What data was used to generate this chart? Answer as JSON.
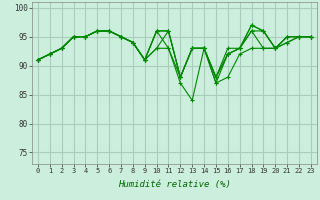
{
  "title": "",
  "xlabel": "Humidité relative (%)",
  "ylabel": "",
  "background_color": "#cceedd",
  "grid_color": "#aaccbb",
  "line_color": "#008800",
  "marker_color": "#008800",
  "xlim": [
    -0.5,
    23.5
  ],
  "ylim": [
    73,
    101
  ],
  "yticks": [
    75,
    80,
    85,
    90,
    95,
    100
  ],
  "xticks": [
    0,
    1,
    2,
    3,
    4,
    5,
    6,
    7,
    8,
    9,
    10,
    11,
    12,
    13,
    14,
    15,
    16,
    17,
    18,
    19,
    20,
    21,
    22,
    23
  ],
  "series": [
    [
      91,
      92,
      93,
      95,
      95,
      96,
      96,
      95,
      94,
      91,
      93,
      93,
      87,
      84,
      93,
      87,
      88,
      92,
      93,
      93,
      93,
      94,
      95,
      95
    ],
    [
      91,
      92,
      93,
      95,
      95,
      96,
      96,
      95,
      94,
      91,
      93,
      96,
      88,
      93,
      93,
      88,
      92,
      93,
      96,
      93,
      93,
      94,
      95,
      95
    ],
    [
      91,
      92,
      93,
      95,
      95,
      96,
      96,
      95,
      94,
      91,
      96,
      93,
      88,
      93,
      93,
      87,
      92,
      93,
      96,
      96,
      93,
      95,
      95,
      95
    ],
    [
      91,
      92,
      93,
      95,
      95,
      96,
      96,
      95,
      94,
      91,
      96,
      96,
      88,
      93,
      93,
      88,
      92,
      93,
      97,
      96,
      93,
      95,
      95,
      95
    ],
    [
      91,
      92,
      93,
      95,
      95,
      96,
      96,
      95,
      94,
      91,
      96,
      96,
      88,
      93,
      93,
      88,
      93,
      93,
      97,
      96,
      93,
      95,
      95,
      95
    ]
  ]
}
